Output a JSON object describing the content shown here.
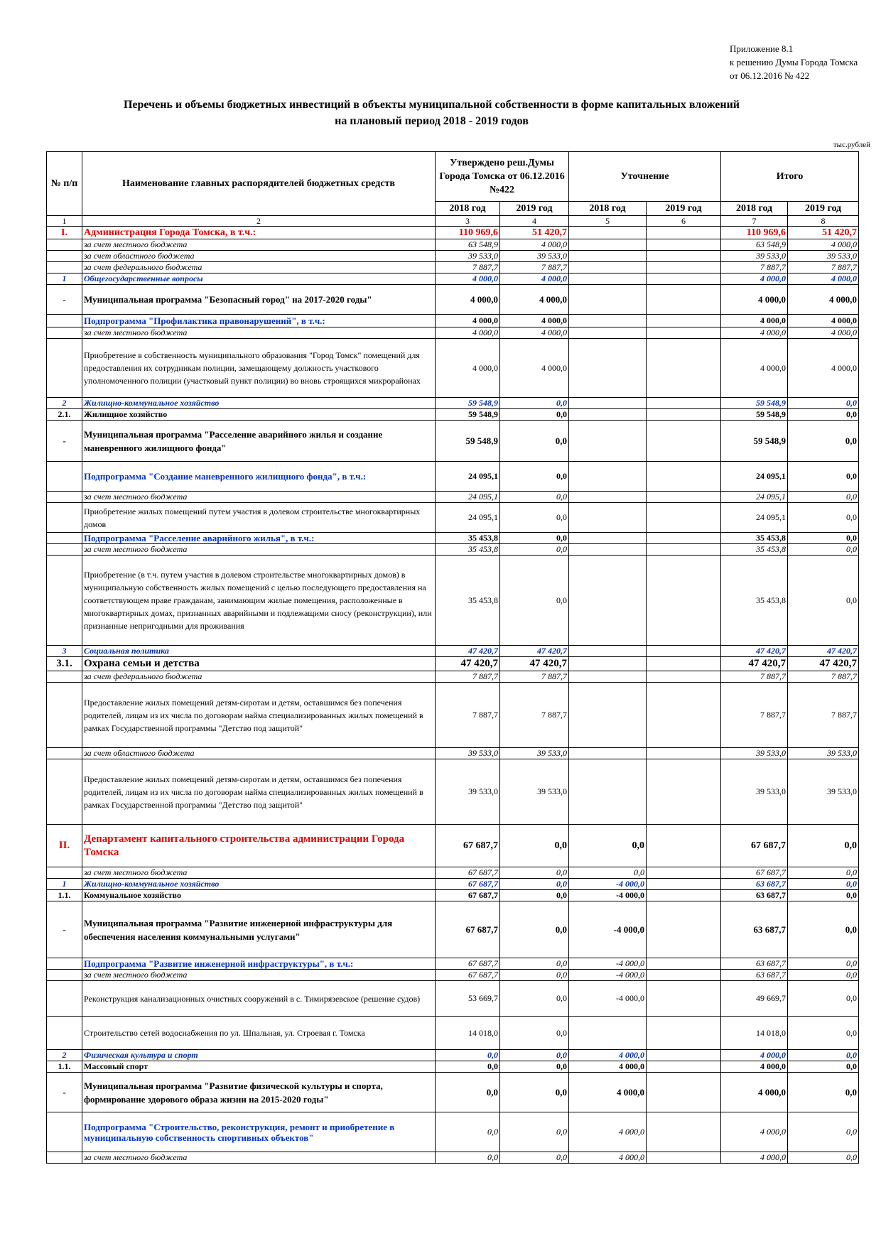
{
  "appendix": {
    "line1": "Приложение 8.1",
    "line2": "к решению Думы Города Томска",
    "line3": "от 06.12.2016 № 422"
  },
  "title": {
    "line1": "Перечень и объемы бюджетных инвестиций в объекты муниципальной собственности в форме капитальных вложений",
    "line2": "на плановый период 2018 - 2019 годов"
  },
  "unit": "тыс.рублей",
  "header": {
    "num": "№ п/п",
    "name": "Наименование главных распорядителей бюджетных средств",
    "approved": "Утверждено реш.Думы Города Томска от 06.12.2016 №422",
    "clarification": "Уточнение",
    "total": "Итого",
    "y2018": "2018 год",
    "y2019": "2019 год",
    "col_numbers": [
      "1",
      "2",
      "3",
      "4",
      "5",
      "6",
      "7",
      "8"
    ]
  },
  "rows": [
    {
      "type": "sec",
      "h": 18,
      "num": "I.",
      "name": "Администрация Города Томска, в т.ч.:",
      "a18": "110 969,6",
      "a19": "51 420,7",
      "u18": "",
      "u19": "",
      "t18": "110 969,6",
      "t19": "51 420,7"
    },
    {
      "type": "src",
      "h": 16,
      "num": "",
      "name": "за счет  местного бюджета",
      "a18": "63 548,9",
      "a19": "4 000,0",
      "u18": "",
      "u19": "",
      "t18": "63 548,9",
      "t19": "4 000,0"
    },
    {
      "type": "src",
      "h": 16,
      "num": "",
      "name": "за счет областного бюджета",
      "a18": "39 533,0",
      "a19": "39 533,0",
      "u18": "",
      "u19": "",
      "t18": "39 533,0",
      "t19": "39 533,0"
    },
    {
      "type": "src",
      "h": 16,
      "num": "",
      "name": "за счет федерального бюджета",
      "a18": "7 887,7",
      "a19": "7 887,7",
      "u18": "",
      "u19": "",
      "t18": "7 887,7",
      "t19": "7 887,7"
    },
    {
      "type": "cat",
      "h": 16,
      "num": "1",
      "name": "Общегосударственные вопросы",
      "a18": "4 000,0",
      "a19": "4 000,0",
      "u18": "",
      "u19": "",
      "t18": "4 000,0",
      "t19": "4 000,0"
    },
    {
      "type": "prog",
      "h": 42,
      "num": "-",
      "name": "Муниципальная программа \"Безопасный город\" на 2017-2020 годы\"",
      "a18": "4 000,0",
      "a19": "4 000,0",
      "u18": "",
      "u19": "",
      "t18": "4 000,0",
      "t19": "4 000,0"
    },
    {
      "type": "subp",
      "h": 18,
      "num": "",
      "name": "Подпрограмма \"Профилактика правонарушений\", в т.ч.:",
      "a18": "4 000,0",
      "a19": "4 000,0",
      "u18": "",
      "u19": "",
      "t18": "4 000,0",
      "t19": "4 000,0"
    },
    {
      "type": "src",
      "h": 16,
      "num": "",
      "name": "за счет местного бюджета",
      "a18": "4 000,0",
      "a19": "4 000,0",
      "u18": "",
      "u19": "",
      "t18": "4 000,0",
      "t19": "4 000,0"
    },
    {
      "type": "obj",
      "h": 83,
      "num": "",
      "name": "Приобретение в  собственность муниципального образования \"Город Томск\" помещений  для предоставления их сотрудникам полиции, замещающему должность участкового уполномоченного полиции (участковый пункт полиции) во вновь строящихся микрорайонах",
      "a18": "4 000,0",
      "a19": "4 000,0",
      "u18": "",
      "u19": "",
      "t18": "4 000,0",
      "t19": "4 000,0"
    },
    {
      "type": "cat",
      "h": 16,
      "num": "2",
      "name": "Жилищно-коммунальное хозяйство",
      "a18": "59 548,9",
      "a19": "0,0",
      "u18": "",
      "u19": "",
      "t18": "59 548,9",
      "t19": "0,0"
    },
    {
      "type": "sub",
      "h": 16,
      "num": "2.1.",
      "name": "Жилищное хозяйство",
      "a18": "59 548,9",
      "a19": "0,0",
      "u18": "",
      "u19": "",
      "t18": "59 548,9",
      "t19": "0,0"
    },
    {
      "type": "prog",
      "h": 58,
      "num": "-",
      "name": "Муниципальная программа \"Расселение аварийного жилья и создание маневренного жилищного фонда\"",
      "a18": "59 548,9",
      "a19": "0,0",
      "u18": "",
      "u19": "",
      "t18": "59 548,9",
      "t19": "0,0"
    },
    {
      "type": "subp",
      "h": 42,
      "num": "",
      "name": "Подпрограмма \"Создание маневренного жилищного фонда\", в т.ч.:",
      "a18": "24 095,1",
      "a19": "0,0",
      "u18": "",
      "u19": "",
      "t18": "24 095,1",
      "t19": "0,0"
    },
    {
      "type": "src",
      "h": 16,
      "num": "",
      "name": "за счет  местного бюджета",
      "a18": "24 095,1",
      "a19": "0,0",
      "u18": "",
      "u19": "",
      "t18": "24 095,1",
      "t19": "0,0"
    },
    {
      "type": "obj",
      "h": 42,
      "num": "",
      "name": "Приобретение жилых помещений путем участия в долевом строительстве многоквартирных домов",
      "a18": "24 095,1",
      "a19": "0,0",
      "u18": "",
      "u19": "",
      "t18": "24 095,1",
      "t19": "0,0"
    },
    {
      "type": "subp",
      "h": 16,
      "num": "",
      "name": "Подпрограмма \"Расселение аварийного жилья\", в т.ч.:",
      "a18": "35 453,8",
      "a19": "0,0",
      "u18": "",
      "u19": "",
      "t18": "35 453,8",
      "t19": "0,0"
    },
    {
      "type": "src",
      "h": 16,
      "num": "",
      "name": "за счет  местного бюджета",
      "a18": "35 453,8",
      "a19": "0,0",
      "u18": "",
      "u19": "",
      "t18": "35 453,8",
      "t19": "0,0"
    },
    {
      "type": "obj",
      "h": 127,
      "num": "",
      "name": "Приобретение (в т.ч. путем участия в долевом строительстве многоквартирных домов) в муниципальную собственность жилых помещений с целью последующего предоставления на соответствующем праве гражданам, занимающим жилые помещения, расположенные в многоквартирных домах, признанных аварийными и подлежащими сносу (реконструкции), или признанные непригодными для проживания",
      "a18": "35 453,8",
      "a19": "0,0",
      "u18": "",
      "u19": "",
      "t18": "35 453,8",
      "t19": "0,0"
    },
    {
      "type": "cat",
      "h": 16,
      "num": "3",
      "name": "Социальная политика",
      "a18": "47 420,7",
      "a19": "47 420,7",
      "u18": "",
      "u19": "",
      "t18": "47 420,7",
      "t19": "47 420,7"
    },
    {
      "type": "sub big",
      "h": 20,
      "num": "3.1.",
      "name": "Охрана семьи и детства",
      "a18": "47 420,7",
      "a19": "47 420,7",
      "u18": "",
      "u19": "",
      "t18": "47 420,7",
      "t19": "47 420,7"
    },
    {
      "type": "src",
      "h": 16,
      "num": "",
      "name": "за счет федерального бюджета",
      "a18": "7 887,7",
      "a19": "7 887,7",
      "u18": "",
      "u19": "",
      "t18": "7 887,7",
      "t19": "7 887,7"
    },
    {
      "type": "obj",
      "h": 92,
      "num": "",
      "name": "Предоставление жилых помещений детям-сиротам и детям, оставшимся без попечения родителей, лицам из их числа по договорам найма специализированных жилых помещений  в рамках Государственной программы \"Детство под защитой\"",
      "a18": "7 887,7",
      "a19": "7 887,7",
      "u18": "",
      "u19": "",
      "t18": "7 887,7",
      "t19": "7 887,7"
    },
    {
      "type": "src",
      "h": 16,
      "num": "",
      "name": "за счет областного бюджета",
      "a18": "39 533,0",
      "a19": "39 533,0",
      "u18": "",
      "u19": "",
      "t18": "39 533,0",
      "t19": "39 533,0"
    },
    {
      "type": "obj",
      "h": 92,
      "num": "",
      "name": "Предоставление жилых помещений детям-сиротам и детям, оставшимся без попечения родителей, лицам из их числа по договорам найма специализированных жилых помещений в рамках Государственной программы \"Детство под защитой\"",
      "a18": "39 533,0",
      "a19": "39 533,0",
      "u18": "",
      "u19": "",
      "t18": "39 533,0",
      "t19": "39 533,0"
    },
    {
      "type": "sec2",
      "h": 60,
      "num": "II.",
      "name": "Департамент капитального строительства администрации Города Томска",
      "a18": "67 687,7",
      "a19": "0,0",
      "u18": "0,0",
      "u19": "",
      "t18": "67 687,7",
      "t19": "0,0"
    },
    {
      "type": "src",
      "h": 16,
      "num": "",
      "name": "за счет местного бюджета",
      "a18": "67 687,7",
      "a19": "0,0",
      "u18": "0,0",
      "u19": "",
      "t18": "67 687,7",
      "t19": "0,0"
    },
    {
      "type": "cat",
      "h": 16,
      "num": "1",
      "name": "Жилищно-коммунальное хозяйство",
      "a18": "67 687,7",
      "a19": "0,0",
      "u18": "-4 000,0",
      "u19": "",
      "t18": "63 687,7",
      "t19": "0,0"
    },
    {
      "type": "sub",
      "h": 16,
      "num": "1.1.",
      "name": "Коммунальное хозяйство",
      "a18": "67 687,7",
      "a19": "0,0",
      "u18": "-4 000,0",
      "u19": "",
      "t18": "63 687,7",
      "t19": "0,0"
    },
    {
      "type": "prog",
      "h": 80,
      "num": "-",
      "name": "Муниципальная программа \"Развитие инженерной инфраструктуры для обеспечения населения коммунальными услугами\"",
      "a18": "67 687,7",
      "a19": "0,0",
      "u18": "-4 000,0",
      "u19": "",
      "t18": "63 687,7",
      "t19": "0,0"
    },
    {
      "type": "subp it",
      "h": 16,
      "num": "",
      "name": "Подпрограмма \"Развитие инженерной инфраструктуры\", в т.ч.:",
      "a18": "67 687,7",
      "a19": "0,0",
      "u18": "-4 000,0",
      "u19": "",
      "t18": "63 687,7",
      "t19": "0,0"
    },
    {
      "type": "src",
      "h": 16,
      "num": "",
      "name": "за счет местного бюджета",
      "a18": "67 687,7",
      "a19": "0,0",
      "u18": "-4 000,0",
      "u19": "",
      "t18": "63 687,7",
      "t19": "0,0"
    },
    {
      "type": "obj",
      "h": 50,
      "num": "",
      "name": "Реконструкция канализационных очистных сооружений в с. Тимирязевское (решение судов)",
      "a18": "53 669,7",
      "a19": "0,0",
      "u18": "-4 000,0",
      "u19": "",
      "t18": "49 669,7",
      "t19": "0,0"
    },
    {
      "type": "obj",
      "h": 47,
      "num": "",
      "name": "Строительство сетей водоснабжения по ул. Шпальная, ул. Строевая г. Томска",
      "a18": "14 018,0",
      "a19": "0,0",
      "u18": "",
      "u19": "",
      "t18": "14 018,0",
      "t19": "0,0"
    },
    {
      "type": "cat",
      "h": 16,
      "num": "2",
      "name": "Физическая культура и спорт",
      "a18": "0,0",
      "a19": "0,0",
      "u18": "4 000,0",
      "u19": "",
      "t18": "4 000,0",
      "t19": "0,0"
    },
    {
      "type": "sub",
      "h": 16,
      "num": "1.1.",
      "name": "Массовый спорт",
      "a18": "0,0",
      "a19": "0,0",
      "u18": "4 000,0",
      "u19": "",
      "t18": "4 000,0",
      "t19": "0,0"
    },
    {
      "type": "prog",
      "h": 56,
      "num": "-",
      "name": "Муниципальная программа \"Развитие физической культуры и спорта, формирование здорового образа жизни на 2015-2020 годы\"",
      "a18": "0,0",
      "a19": "0,0",
      "u18": "4 000,0",
      "u19": "",
      "t18": "4 000,0",
      "t19": "0,0"
    },
    {
      "type": "subp it",
      "h": 56,
      "num": "",
      "name": "Подпрограмма \"Строительство, реконструкция, ремонт и приобретение в муниципальную собственность спортивных объектов\"",
      "a18": "0,0",
      "a19": "0,0",
      "u18": "4 000,0",
      "u19": "",
      "t18": "4 000,0",
      "t19": "0,0"
    },
    {
      "type": "src",
      "h": 16,
      "num": "",
      "name": "за счет  местного бюджета",
      "a18": "0,0",
      "a19": "0,0",
      "u18": "4 000,0",
      "u19": "",
      "t18": "4 000,0",
      "t19": "0,0"
    }
  ]
}
